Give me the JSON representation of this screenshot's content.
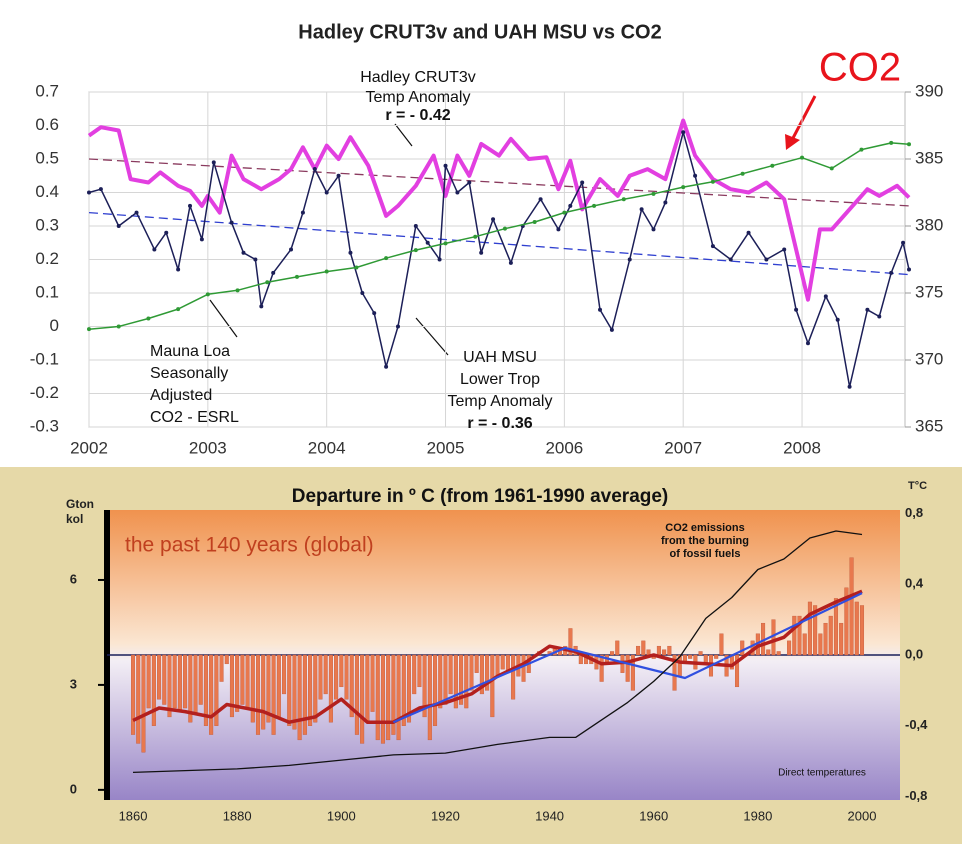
{
  "chart_data": [
    {
      "type": "line",
      "title": "Hadley CRUT3v and UAH MSU vs CO2",
      "xlim": [
        2002,
        2008.9
      ],
      "xticks": [
        2002,
        2003,
        2004,
        2005,
        2006,
        2007,
        2008
      ],
      "ylim": [
        -0.3,
        0.7
      ],
      "yticks": [
        -0.3,
        -0.2,
        -0.1,
        0,
        0.1,
        0.2,
        0.3,
        0.4,
        0.5,
        0.6,
        0.7
      ],
      "y2lim": [
        365,
        390
      ],
      "y2ticks": [
        365,
        370,
        375,
        380,
        385,
        390
      ],
      "grid": true,
      "series": [
        {
          "color": "#e23fe0",
          "x": [
            2002.0,
            2002.1,
            2002.25,
            2002.35,
            2002.5,
            2002.6,
            2002.75,
            2002.85,
            2002.95,
            2003.0,
            2003.1,
            2003.2,
            2003.3,
            2003.45,
            2003.6,
            2003.7,
            2003.8,
            2003.9,
            2004.0,
            2004.1,
            2004.2,
            2004.35,
            2004.5,
            2004.6,
            2004.75,
            2004.9,
            2005.0,
            2005.1,
            2005.2,
            2005.3,
            2005.45,
            2005.55,
            2005.7,
            2005.85,
            2005.95,
            2006.05,
            2006.15,
            2006.3,
            2006.45,
            2006.55,
            2006.7,
            2006.85,
            2007.0,
            2007.1,
            2007.25,
            2007.4,
            2007.55,
            2007.7,
            2007.85,
            2007.95,
            2008.05,
            2008.15,
            2008.25,
            2008.4,
            2008.55,
            2008.65,
            2008.8,
            2008.9
          ],
          "values": [
            0.57,
            0.595,
            0.585,
            0.44,
            0.43,
            0.46,
            0.42,
            0.405,
            0.36,
            0.39,
            0.34,
            0.51,
            0.44,
            0.41,
            0.44,
            0.47,
            0.535,
            0.47,
            0.54,
            0.5,
            0.565,
            0.48,
            0.33,
            0.36,
            0.42,
            0.51,
            0.39,
            0.51,
            0.45,
            0.545,
            0.51,
            0.56,
            0.5,
            0.505,
            0.41,
            0.495,
            0.35,
            0.44,
            0.39,
            0.45,
            0.47,
            0.44,
            0.615,
            0.51,
            0.44,
            0.41,
            0.4,
            0.43,
            0.38,
            0.23,
            0.08,
            0.29,
            0.29,
            0.35,
            0.41,
            0.39,
            0.42,
            0.385
          ]
        },
        {
          "color": "#1c1f58",
          "x": [
            2002.0,
            2002.1,
            2002.25,
            2002.4,
            2002.55,
            2002.65,
            2002.75,
            2002.85,
            2002.95,
            2003.05,
            2003.2,
            2003.3,
            2003.4,
            2003.45,
            2003.55,
            2003.7,
            2003.8,
            2003.9,
            2004.0,
            2004.1,
            2004.2,
            2004.3,
            2004.4,
            2004.5,
            2004.6,
            2004.75,
            2004.85,
            2004.95,
            2005.0,
            2005.1,
            2005.2,
            2005.3,
            2005.4,
            2005.55,
            2005.65,
            2005.8,
            2005.95,
            2006.05,
            2006.15,
            2006.3,
            2006.4,
            2006.55,
            2006.65,
            2006.75,
            2006.85,
            2007.0,
            2007.1,
            2007.25,
            2007.4,
            2007.55,
            2007.7,
            2007.85,
            2007.95,
            2008.05,
            2008.2,
            2008.3,
            2008.4,
            2008.55,
            2008.65,
            2008.75,
            2008.85,
            2008.9
          ],
          "values": [
            0.4,
            0.41,
            0.3,
            0.34,
            0.23,
            0.28,
            0.17,
            0.36,
            0.26,
            0.49,
            0.31,
            0.22,
            0.2,
            0.06,
            0.16,
            0.23,
            0.34,
            0.47,
            0.4,
            0.45,
            0.22,
            0.1,
            0.04,
            -0.12,
            0.0,
            0.3,
            0.25,
            0.2,
            0.48,
            0.4,
            0.43,
            0.22,
            0.32,
            0.19,
            0.3,
            0.38,
            0.29,
            0.36,
            0.43,
            0.05,
            -0.01,
            0.2,
            0.35,
            0.29,
            0.37,
            0.58,
            0.45,
            0.24,
            0.2,
            0.28,
            0.2,
            0.23,
            0.05,
            -0.05,
            0.09,
            0.02,
            -0.18,
            0.05,
            0.03,
            0.16,
            0.25,
            0.17
          ]
        },
        {
          "color": "#2f9a35",
          "axis": "y2",
          "x": [
            2002,
            2002.25,
            2002.5,
            2002.75,
            2003,
            2003.25,
            2003.5,
            2003.75,
            2004,
            2004.25,
            2004.5,
            2004.75,
            2005,
            2005.25,
            2005.5,
            2005.75,
            2006,
            2006.25,
            2006.5,
            2006.75,
            2007,
            2007.25,
            2007.5,
            2007.75,
            2008,
            2008.25,
            2008.5,
            2008.75,
            2008.9
          ],
          "values": [
            372.3,
            372.5,
            373.1,
            373.8,
            374.9,
            375.2,
            375.8,
            376.2,
            376.6,
            376.9,
            377.6,
            378.2,
            378.7,
            379.2,
            379.8,
            380.3,
            381.0,
            381.5,
            382.0,
            382.4,
            382.9,
            383.3,
            383.9,
            384.5,
            385.1,
            384.3,
            385.7,
            386.2,
            386.1
          ]
        }
      ],
      "trend_lines": [
        {
          "color": "#8a3a5e",
          "x": [
            2002,
            2008.9
          ],
          "values": [
            0.5,
            0.36
          ]
        },
        {
          "color": "#3040d0",
          "x": [
            2002,
            2008.9
          ],
          "values": [
            0.34,
            0.155
          ]
        }
      ],
      "annotations": [
        {
          "lines": [
            "Hadley CRUT3v",
            "Temp Anomaly"
          ]
        },
        {
          "lines": [
            "r = - 0.42"
          ]
        },
        {
          "lines": [
            "Mauna Loa",
            "Seasonally",
            "Adjusted",
            "CO2 - ESRL"
          ]
        },
        {
          "lines": [
            "UAH MSU",
            "Lower Trop",
            "Temp Anomaly"
          ]
        },
        {
          "lines": [
            "r = - 0.36"
          ]
        },
        {
          "lines": [
            "CO2"
          ],
          "color": "#e8141c"
        }
      ]
    },
    {
      "type": "combo",
      "title": "Departure in º C (from 1961-1990 average)",
      "y_label": [
        "Gton",
        "kol"
      ],
      "y2_label": "T°C",
      "xlim": [
        1855,
        2007.3
      ],
      "xticks": [
        1860,
        1880,
        1900,
        1920,
        1940,
        1960,
        1980,
        2000
      ],
      "ylim": [
        -0.29,
        8.0
      ],
      "yticks": [
        0,
        3,
        6
      ],
      "y2lim": [
        -0.82,
        0.82
      ],
      "y2ticks": [
        {
          "value": -0.8,
          "label": "-0,8"
        },
        {
          "value": -0.4,
          "label": "-0,4"
        },
        {
          "value": 0,
          "label": "0,0"
        },
        {
          "value": 0.4,
          "label": "0,4"
        },
        {
          "value": 0.8,
          "label": "0,8"
        }
      ],
      "bars": {
        "color": "#e8784e",
        "axis": "y2",
        "x": [
          1860,
          1861,
          1862,
          1863,
          1864,
          1865,
          1866,
          1867,
          1868,
          1869,
          1870,
          1871,
          1872,
          1873,
          1874,
          1875,
          1876,
          1877,
          1878,
          1879,
          1880,
          1881,
          1882,
          1883,
          1884,
          1885,
          1886,
          1887,
          1888,
          1889,
          1890,
          1891,
          1892,
          1893,
          1894,
          1895,
          1896,
          1897,
          1898,
          1899,
          1900,
          1901,
          1902,
          1903,
          1904,
          1905,
          1906,
          1907,
          1908,
          1909,
          1910,
          1911,
          1912,
          1913,
          1914,
          1915,
          1916,
          1917,
          1918,
          1919,
          1920,
          1921,
          1922,
          1923,
          1924,
          1925,
          1926,
          1927,
          1928,
          1929,
          1930,
          1931,
          1932,
          1933,
          1934,
          1935,
          1936,
          1937,
          1938,
          1939,
          1940,
          1941,
          1942,
          1943,
          1944,
          1945,
          1946,
          1947,
          1948,
          1949,
          1950,
          1951,
          1952,
          1953,
          1954,
          1955,
          1956,
          1957,
          1958,
          1959,
          1960,
          1961,
          1962,
          1963,
          1964,
          1965,
          1966,
          1967,
          1968,
          1969,
          1970,
          1971,
          1972,
          1973,
          1974,
          1975,
          1976,
          1977,
          1978,
          1979,
          1980,
          1981,
          1982,
          1983,
          1984,
          1985,
          1986,
          1987,
          1988,
          1989,
          1990,
          1991,
          1992,
          1993,
          1994,
          1995,
          1996,
          1997,
          1998,
          1999,
          2000
        ],
        "values": [
          -0.45,
          -0.5,
          -0.55,
          -0.3,
          -0.4,
          -0.25,
          -0.28,
          -0.35,
          -0.3,
          -0.32,
          -0.3,
          -0.38,
          -0.33,
          -0.28,
          -0.4,
          -0.45,
          -0.4,
          -0.15,
          -0.05,
          -0.35,
          -0.32,
          -0.28,
          -0.3,
          -0.38,
          -0.45,
          -0.42,
          -0.38,
          -0.45,
          -0.35,
          -0.22,
          -0.4,
          -0.42,
          -0.48,
          -0.45,
          -0.4,
          -0.38,
          -0.25,
          -0.22,
          -0.38,
          -0.25,
          -0.18,
          -0.25,
          -0.35,
          -0.45,
          -0.5,
          -0.38,
          -0.32,
          -0.48,
          -0.5,
          -0.48,
          -0.45,
          -0.48,
          -0.4,
          -0.38,
          -0.22,
          -0.18,
          -0.35,
          -0.48,
          -0.4,
          -0.3,
          -0.28,
          -0.22,
          -0.3,
          -0.28,
          -0.3,
          -0.2,
          -0.1,
          -0.22,
          -0.2,
          -0.35,
          -0.12,
          -0.08,
          -0.1,
          -0.25,
          -0.12,
          -0.15,
          -0.1,
          0.0,
          0.02,
          0.0,
          0.02,
          0.05,
          0.03,
          0.05,
          0.15,
          0.05,
          -0.05,
          -0.05,
          -0.05,
          -0.08,
          -0.15,
          -0.05,
          0.02,
          0.08,
          -0.1,
          -0.15,
          -0.2,
          0.05,
          0.08,
          0.03,
          -0.02,
          0.05,
          0.03,
          0.05,
          -0.2,
          -0.12,
          -0.05,
          -0.02,
          -0.08,
          0.02,
          -0.05,
          -0.12,
          -0.02,
          0.12,
          -0.12,
          -0.08,
          -0.18,
          0.08,
          0.0,
          0.08,
          0.12,
          0.18,
          0.03,
          0.2,
          0.02,
          0.0,
          0.08,
          0.22,
          0.22,
          0.12,
          0.3,
          0.28,
          0.12,
          0.18,
          0.22,
          0.32,
          0.18,
          0.38,
          0.55,
          0.3,
          0.28
        ]
      },
      "series": [
        {
          "color": "#b3201e",
          "axis": "y2",
          "x": [
            1860,
            1865,
            1870,
            1875,
            1878,
            1885,
            1890,
            1895,
            1900,
            1905,
            1910,
            1915,
            1920,
            1925,
            1930,
            1935,
            1940,
            1945,
            1950,
            1955,
            1960,
            1965,
            1970,
            1975,
            1980,
            1985,
            1990,
            1995,
            2000
          ],
          "values": [
            -0.37,
            -0.3,
            -0.32,
            -0.35,
            -0.28,
            -0.32,
            -0.38,
            -0.35,
            -0.25,
            -0.38,
            -0.38,
            -0.3,
            -0.27,
            -0.22,
            -0.12,
            -0.05,
            0.05,
            0.02,
            -0.05,
            -0.04,
            0.0,
            -0.04,
            -0.05,
            -0.06,
            0.05,
            0.1,
            0.23,
            0.3,
            0.36
          ]
        },
        {
          "color": "#3050e0",
          "axis": "y2",
          "x": [
            1910,
            1943,
            1966,
            2000
          ],
          "values": [
            -0.38,
            0.04,
            -0.13,
            0.35
          ]
        },
        {
          "color": "#111111",
          "x": [
            1860,
            1870,
            1880,
            1890,
            1900,
            1910,
            1920,
            1930,
            1940,
            1945,
            1950,
            1955,
            1960,
            1965,
            1970,
            1975,
            1980,
            1985,
            1990,
            1995,
            2000
          ],
          "values": [
            0.5,
            0.55,
            0.6,
            0.7,
            0.85,
            1.0,
            1.05,
            1.3,
            1.5,
            1.5,
            2.0,
            2.5,
            3.1,
            3.8,
            4.9,
            5.5,
            6.3,
            6.6,
            7.2,
            7.4,
            7.3
          ]
        }
      ],
      "annotations": [
        {
          "lines": [
            "the past 140 years (global)"
          ],
          "color": "#c0401f"
        },
        {
          "lines": [
            "CO2 emissions",
            "from the burning",
            "of fossil fuels"
          ]
        },
        {
          "lines": [
            "Direct temperatures"
          ]
        }
      ]
    }
  ]
}
